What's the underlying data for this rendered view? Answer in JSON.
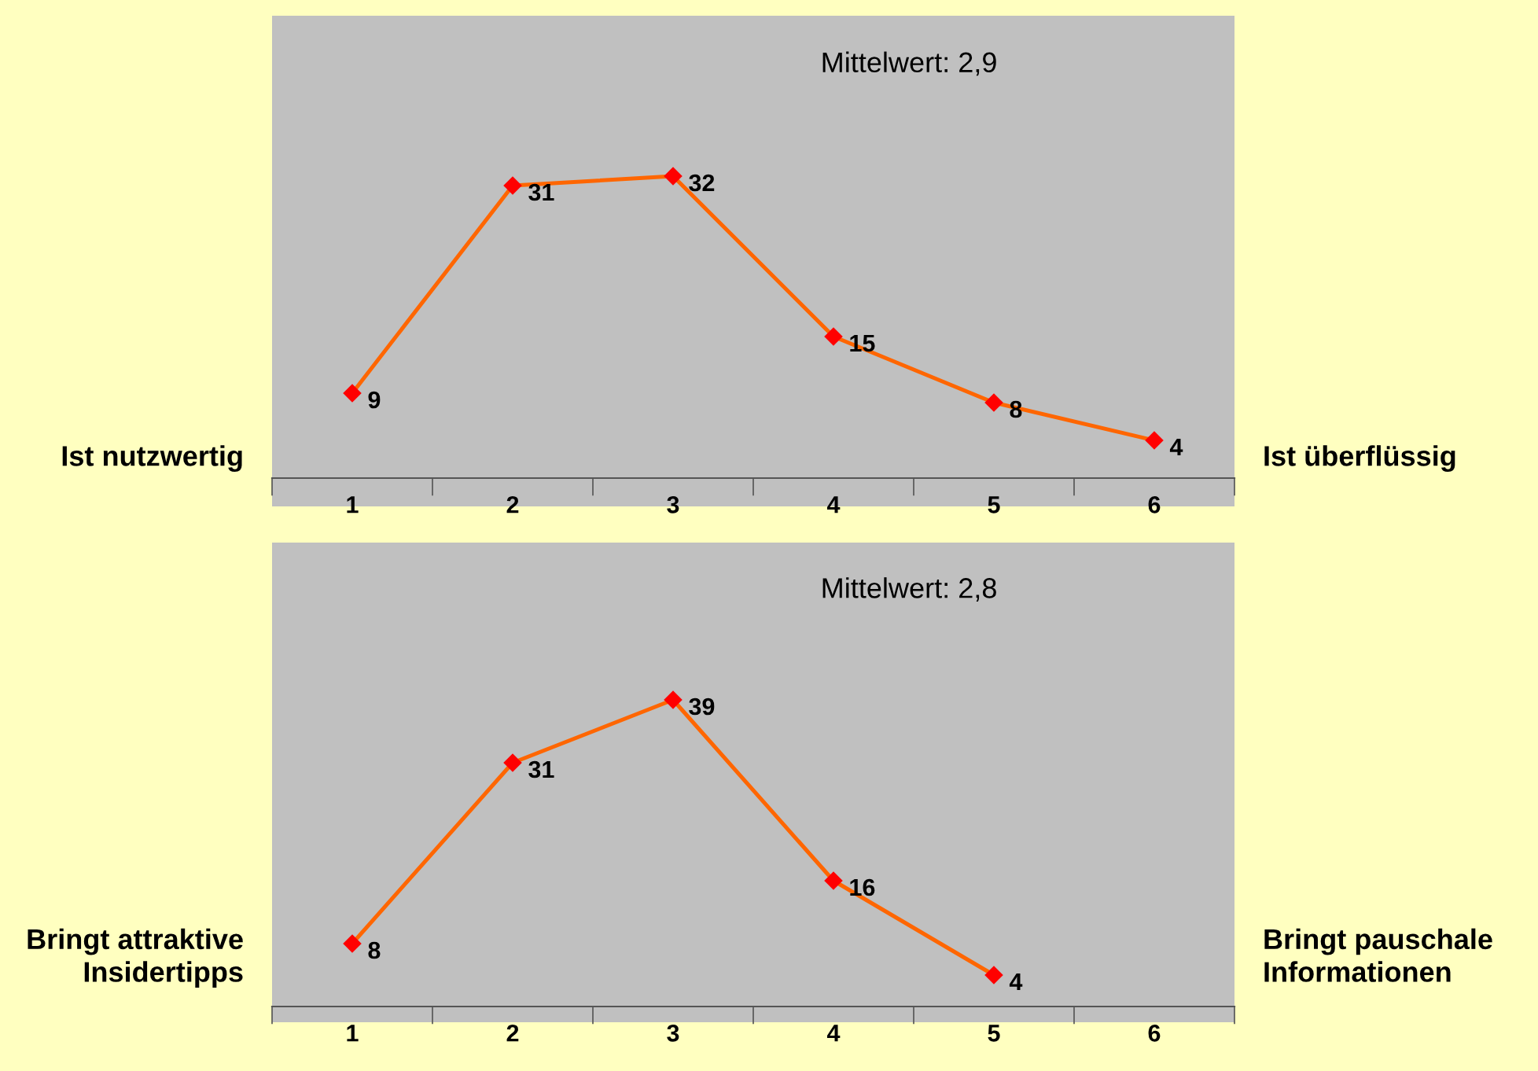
{
  "chart_data": [
    {
      "type": "line",
      "categories": [
        "1",
        "2",
        "3",
        "4",
        "5",
        "6"
      ],
      "series": [
        {
          "color": "#ff6600",
          "values": [
            9,
            31,
            32,
            15,
            8,
            4
          ]
        }
      ],
      "marker": "diamond",
      "data_labels": true,
      "ylim": [
        -3,
        49
      ],
      "tick_labels": "x",
      "grid": false,
      "legend": false,
      "annotations": [
        "Mittelwert: 2,9",
        "Ist nutzwertig",
        "Ist überflüssig"
      ]
    },
    {
      "type": "line",
      "categories": [
        "1",
        "2",
        "3",
        "4",
        "5",
        "6"
      ],
      "series": [
        {
          "color": "#ff6600",
          "values": [
            8,
            31,
            39,
            16,
            4,
            null
          ]
        }
      ],
      "marker": "diamond",
      "data_labels": true,
      "ylim": [
        -2,
        59
      ],
      "tick_labels": "x",
      "grid": false,
      "legend": false,
      "annotations": [
        "Mittelwert: 2,8",
        "Bringt attraktive Insidertipps",
        "Bringt pauschale Informationen"
      ]
    }
  ]
}
